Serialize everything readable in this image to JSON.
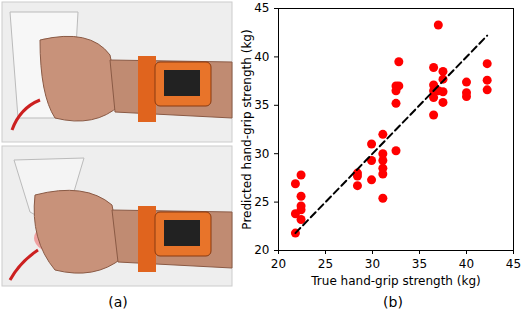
{
  "panel_a": {
    "label": "(a)"
  },
  "chart_data": {
    "type": "scatter",
    "panel_label": "(b)",
    "xlabel": "True hand-grip strength (kg)",
    "ylabel": "Predicted hand-grip strength (kg)",
    "x": [
      21.8,
      21.8,
      21.8,
      22.4,
      22.4,
      22.4,
      22.4,
      22.4,
      28.4,
      28.4,
      28.4,
      29.9,
      29.9,
      29.9,
      31.1,
      31.1,
      31.1,
      31.1,
      31.1,
      31.1,
      32.5,
      32.5,
      32.5,
      32.5,
      32.8,
      32.8,
      36.5,
      36.5,
      36.5,
      36.5,
      36.5,
      37.0,
      37.0,
      37.5,
      37.5,
      37.5,
      37.5,
      40.0,
      40.0,
      40.0,
      42.2,
      42.2,
      42.2
    ],
    "values": [
      26.9,
      23.8,
      21.8,
      27.8,
      25.6,
      24.6,
      24.2,
      23.2,
      28.0,
      27.7,
      26.7,
      31.0,
      29.3,
      27.3,
      32.0,
      30.0,
      29.3,
      28.5,
      27.9,
      25.4,
      37.0,
      36.5,
      35.2,
      30.3,
      39.5,
      37.0,
      38.9,
      37.1,
      36.5,
      35.8,
      34.0,
      43.3,
      36.5,
      38.5,
      37.7,
      36.4,
      35.3,
      37.4,
      36.3,
      35.9,
      39.3,
      37.6,
      36.6
    ],
    "color": "#ff0000",
    "marker": "circle",
    "fit_line": {
      "x": [
        21.8,
        42.2
      ],
      "y": [
        21.8,
        42.2
      ],
      "color": "#000000",
      "line_style": "dashed"
    },
    "xlim": [
      20,
      45
    ],
    "ylim": [
      20,
      45
    ],
    "xticks": [
      20,
      25,
      30,
      35,
      40,
      45
    ],
    "yticks": [
      20,
      25,
      30,
      35,
      40,
      45
    ],
    "grid": false
  }
}
